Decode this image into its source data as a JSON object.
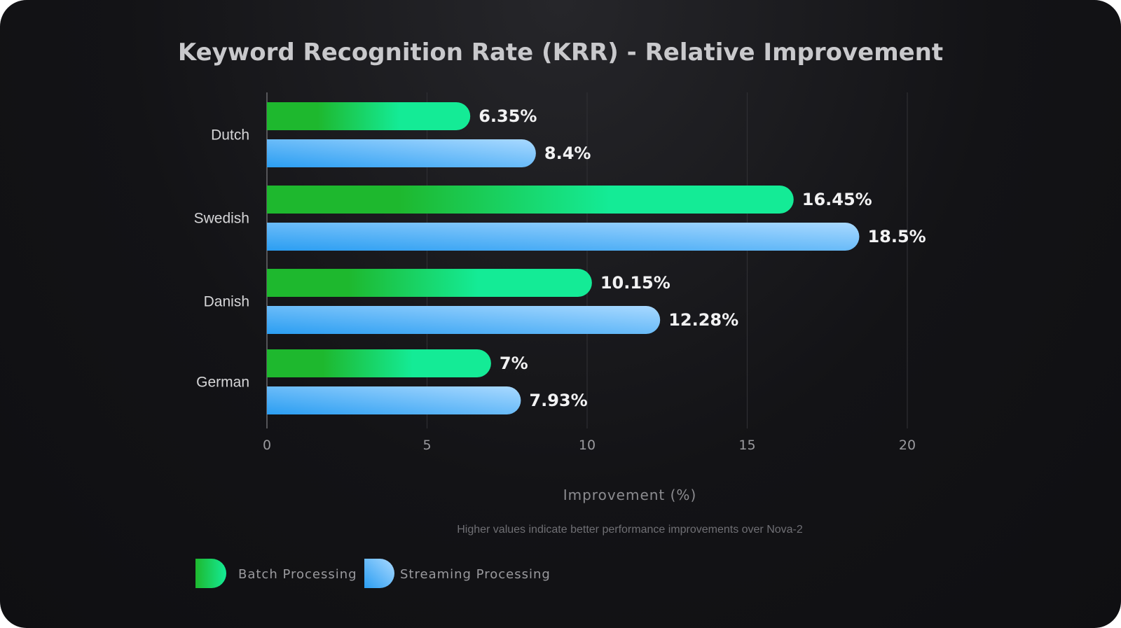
{
  "chart_data": {
    "type": "bar",
    "orientation": "horizontal",
    "title": "Keyword Recognition Rate (KRR) - Relative Improvement",
    "xlabel": "Improvement (%)",
    "note": "Higher values indicate better performance improvements over Nova-2",
    "categories": [
      "Dutch",
      "Swedish",
      "Danish",
      "German"
    ],
    "xlim": [
      0,
      20
    ],
    "ticks": [
      0,
      5,
      10,
      15,
      20
    ],
    "grid": true,
    "legend_position": "bottom-left",
    "series": [
      {
        "name": "Batch Processing",
        "values": [
          6.35,
          16.45,
          10.15,
          7
        ],
        "labels": [
          "6.35%",
          "16.45%",
          "10.15%",
          "7%"
        ],
        "color_start": "#1eb82e",
        "color_end": "#14eb96"
      },
      {
        "name": "Streaming Processing",
        "values": [
          8.4,
          18.5,
          12.28,
          7.93
        ],
        "labels": [
          "8.4%",
          "18.5%",
          "12.28%",
          "7.93%"
        ],
        "color_start": "#2b9ef2",
        "color_end": "#a9d9ff"
      }
    ]
  }
}
